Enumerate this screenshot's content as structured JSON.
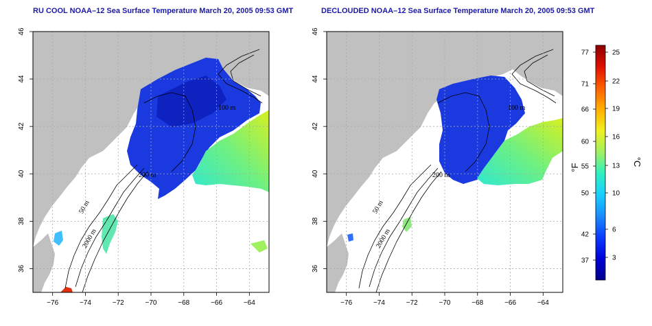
{
  "panels": [
    {
      "id": "left",
      "title": "RU COOL NOAA–12 Sea Surface Temperature March 20, 2005 09:53 GMT",
      "contour_labels": [
        "100 m",
        "200 m",
        "50 m",
        "2000 m"
      ]
    },
    {
      "id": "right",
      "title": "DECLOUDED NOAA–12 Sea Surface Temperature March 20, 2005 09:53 GMT",
      "contour_labels": [
        "100 m",
        "200 m",
        "50 m",
        "2000 m"
      ]
    }
  ],
  "axes": {
    "x_ticks": [
      -76,
      -74,
      -72,
      -70,
      -68,
      -66,
      -64
    ],
    "x_tick_labels": [
      "−76",
      "−74",
      "−72",
      "−70",
      "−68",
      "−66",
      "−64"
    ],
    "y_ticks": [
      36,
      38,
      40,
      42,
      44,
      46
    ],
    "y_tick_labels": [
      "36",
      "38",
      "40",
      "42",
      "44",
      "46"
    ],
    "xlim": [
      -77.2,
      -62.8
    ],
    "ylim": [
      35,
      46
    ],
    "grid": true
  },
  "colorbar": {
    "fahrenheit_ticks": [
      "77",
      "71",
      "66",
      "60",
      "55",
      "50",
      "42",
      "37"
    ],
    "celsius_ticks": [
      "25",
      "22",
      "19",
      "16",
      "13",
      "10",
      "6",
      "3"
    ],
    "unit_left": "°F",
    "unit_right": "°C",
    "colors": [
      "#00008a",
      "#0000d8",
      "#0a3cff",
      "#1a8cff",
      "#18d0ff",
      "#30f0c0",
      "#a0f060",
      "#f0f020",
      "#ffb000",
      "#ff6000",
      "#e01000",
      "#8a0000"
    ]
  },
  "colors": {
    "land": "#c0c0c0",
    "ocean": "#ffffff",
    "cold_water": "#1030d8",
    "warm_water": "#40e0b0",
    "grid": "#a8a8a8"
  }
}
